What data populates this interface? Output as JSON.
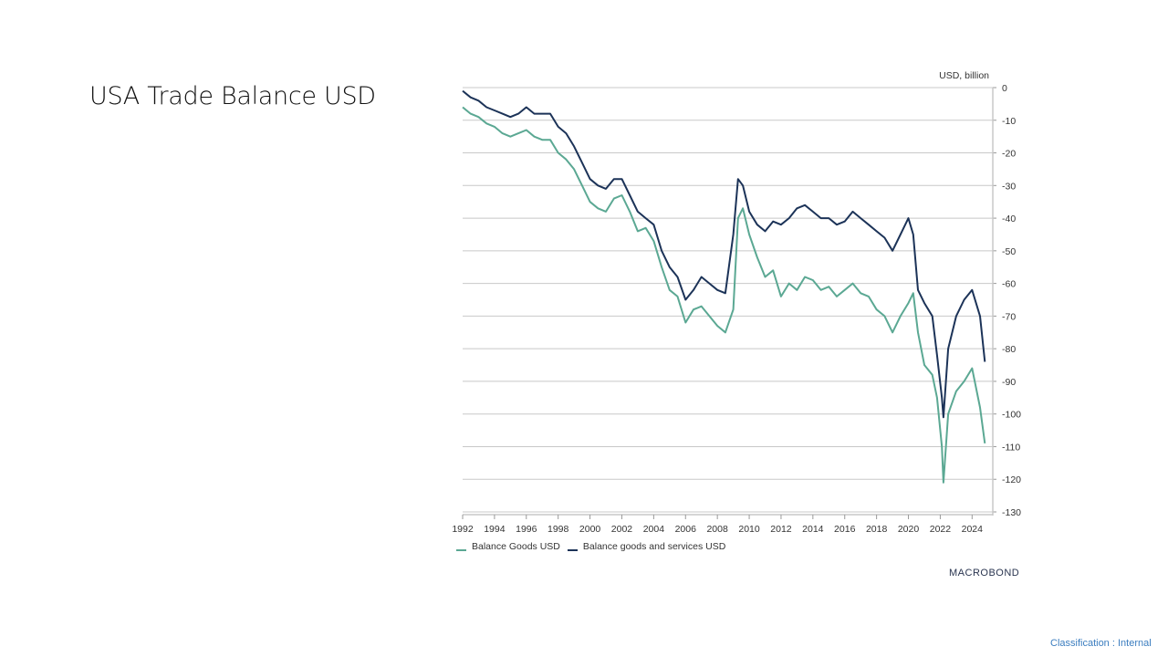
{
  "slide": {
    "title": "USA Trade Balance USD",
    "brand": "MACROBOND",
    "classification": "Classification : Internal"
  },
  "chart_data": {
    "type": "line",
    "title": "USA Trade Balance USD",
    "ylabel": "USD, billion",
    "xlabel": "",
    "xlim": [
      1992,
      2025.3
    ],
    "ylim": [
      -130,
      0
    ],
    "yticks": [
      0,
      -10,
      -20,
      -30,
      -40,
      -50,
      -60,
      -70,
      -80,
      -90,
      -100,
      -110,
      -120,
      -130
    ],
    "ytick_labels": [
      "0",
      "-10",
      "-20",
      "-30",
      "-40",
      "-50",
      "-60",
      "-70",
      "-80",
      "-90",
      "-100",
      "-110",
      "-120",
      "-130"
    ],
    "xticks": [
      1992,
      1994,
      1996,
      1998,
      2000,
      2002,
      2004,
      2006,
      2008,
      2010,
      2012,
      2014,
      2016,
      2018,
      2020,
      2022,
      2024
    ],
    "xtick_labels": [
      "1992",
      "1994",
      "1996",
      "1998",
      "2000",
      "2002",
      "2004",
      "2006",
      "2008",
      "2010",
      "2012",
      "2014",
      "2016",
      "2018",
      "2020",
      "2022",
      "2024"
    ],
    "grid": true,
    "legend_position": "bottom-left",
    "series": [
      {
        "name": "Balance Goods USD",
        "color": "#5ba893",
        "x": [
          1992.0,
          1992.5,
          1993.0,
          1993.5,
          1994.0,
          1994.5,
          1995.0,
          1995.5,
          1996.0,
          1996.5,
          1997.0,
          1997.5,
          1998.0,
          1998.5,
          1999.0,
          1999.5,
          2000.0,
          2000.5,
          2001.0,
          2001.5,
          2002.0,
          2002.5,
          2003.0,
          2003.5,
          2004.0,
          2004.5,
          2005.0,
          2005.5,
          2006.0,
          2006.5,
          2007.0,
          2007.5,
          2008.0,
          2008.5,
          2009.0,
          2009.3,
          2009.6,
          2010.0,
          2010.5,
          2011.0,
          2011.5,
          2012.0,
          2012.5,
          2013.0,
          2013.5,
          2014.0,
          2014.5,
          2015.0,
          2015.5,
          2016.0,
          2016.5,
          2017.0,
          2017.5,
          2018.0,
          2018.5,
          2019.0,
          2019.5,
          2020.0,
          2020.3,
          2020.6,
          2021.0,
          2021.5,
          2021.8,
          2022.1,
          2022.2,
          2022.5,
          2023.0,
          2023.5,
          2024.0,
          2024.5,
          2024.8
        ],
        "values": [
          -6,
          -8,
          -9,
          -11,
          -12,
          -14,
          -15,
          -14,
          -13,
          -15,
          -16,
          -16,
          -20,
          -22,
          -25,
          -30,
          -35,
          -37,
          -38,
          -34,
          -33,
          -38,
          -44,
          -43,
          -47,
          -55,
          -62,
          -64,
          -72,
          -68,
          -67,
          -70,
          -73,
          -75,
          -68,
          -40,
          -37,
          -45,
          -52,
          -58,
          -56,
          -64,
          -60,
          -62,
          -58,
          -59,
          -62,
          -61,
          -64,
          -62,
          -60,
          -63,
          -64,
          -68,
          -70,
          -75,
          -70,
          -66,
          -63,
          -75,
          -85,
          -88,
          -95,
          -110,
          -121,
          -100,
          -93,
          -90,
          -86,
          -98,
          -109
        ]
      },
      {
        "name": "Balance goods and services USD",
        "color": "#1c3358",
        "x": [
          1992.0,
          1992.5,
          1993.0,
          1993.5,
          1994.0,
          1994.5,
          1995.0,
          1995.5,
          1996.0,
          1996.5,
          1997.0,
          1997.5,
          1998.0,
          1998.5,
          1999.0,
          1999.5,
          2000.0,
          2000.5,
          2001.0,
          2001.5,
          2002.0,
          2002.5,
          2003.0,
          2003.5,
          2004.0,
          2004.5,
          2005.0,
          2005.5,
          2006.0,
          2006.5,
          2007.0,
          2007.5,
          2008.0,
          2008.5,
          2009.0,
          2009.3,
          2009.6,
          2010.0,
          2010.5,
          2011.0,
          2011.5,
          2012.0,
          2012.5,
          2013.0,
          2013.5,
          2014.0,
          2014.5,
          2015.0,
          2015.5,
          2016.0,
          2016.5,
          2017.0,
          2017.5,
          2018.0,
          2018.5,
          2019.0,
          2019.5,
          2020.0,
          2020.3,
          2020.6,
          2021.0,
          2021.5,
          2021.8,
          2022.1,
          2022.2,
          2022.5,
          2023.0,
          2023.5,
          2024.0,
          2024.5,
          2024.8
        ],
        "values": [
          -1,
          -3,
          -4,
          -6,
          -7,
          -8,
          -9,
          -8,
          -6,
          -8,
          -8,
          -8,
          -12,
          -14,
          -18,
          -23,
          -28,
          -30,
          -31,
          -28,
          -28,
          -33,
          -38,
          -40,
          -42,
          -50,
          -55,
          -58,
          -65,
          -62,
          -58,
          -60,
          -62,
          -63,
          -45,
          -28,
          -30,
          -38,
          -42,
          -44,
          -41,
          -42,
          -40,
          -37,
          -36,
          -38,
          -40,
          -40,
          -42,
          -41,
          -38,
          -40,
          -42,
          -44,
          -46,
          -50,
          -45,
          -40,
          -45,
          -62,
          -66,
          -70,
          -82,
          -95,
          -101,
          -80,
          -70,
          -65,
          -62,
          -70,
          -84
        ]
      }
    ]
  }
}
